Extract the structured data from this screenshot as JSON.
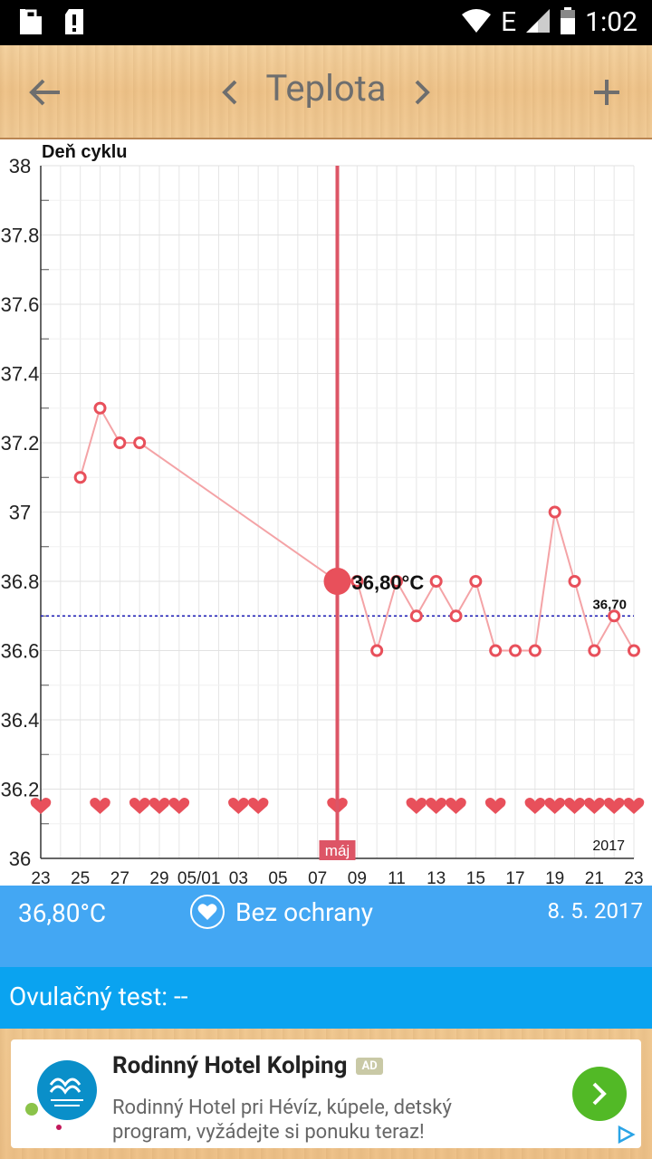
{
  "status_bar": {
    "time": "1:02",
    "network": "E"
  },
  "toolbar": {
    "title": "Teplota"
  },
  "chart_data": {
    "type": "line",
    "title": "Deň cyklu",
    "ylim": [
      36,
      38
    ],
    "y_ticks": [
      "36",
      "36.2",
      "36.4",
      "36.6",
      "36.8",
      "37",
      "37.2",
      "37.4",
      "37.6",
      "37.8",
      "38"
    ],
    "x_tick_labels": [
      "23",
      "25",
      "27",
      "29",
      "05/01",
      "03",
      "05",
      "07",
      "09",
      "11",
      "13",
      "15",
      "17",
      "19",
      "21",
      "23"
    ],
    "x_range_days": [
      0,
      30
    ],
    "month_label": "máj",
    "year_label": "2017",
    "coverline_value": 36.7,
    "coverline_label": "36,70",
    "selected": {
      "day": 15,
      "value": 36.8,
      "label": "36,80°C"
    },
    "series": [
      {
        "points": [
          [
            2,
            37.1
          ],
          [
            3,
            37.3
          ],
          [
            4,
            37.2
          ],
          [
            5,
            37.2
          ],
          [
            15,
            36.8
          ],
          [
            16,
            36.8
          ],
          [
            17,
            36.6
          ],
          [
            18,
            36.8
          ],
          [
            19,
            36.7
          ],
          [
            20,
            36.8
          ],
          [
            21,
            36.7
          ],
          [
            22,
            36.8
          ],
          [
            23,
            36.6
          ],
          [
            24,
            36.6
          ],
          [
            25,
            36.6
          ],
          [
            26,
            37.0
          ],
          [
            27,
            36.8
          ],
          [
            28,
            36.6
          ],
          [
            29,
            36.7
          ],
          [
            30,
            36.6
          ]
        ]
      }
    ],
    "heart_days": [
      0,
      3,
      5,
      6,
      7,
      10,
      11,
      15,
      19,
      20,
      21,
      23,
      25,
      26,
      27,
      28,
      29,
      30
    ]
  },
  "info_bar": {
    "temperature": "36,80°C",
    "protection": "Bez ochrany",
    "date": "8. 5. 2017"
  },
  "ovulation": {
    "label": "Ovulačný test: --"
  },
  "ad": {
    "title": "Rodinný Hotel Kolping",
    "badge": "AD",
    "description": "Rodinný Hotel pri Hévíz, kúpele, detský program, vyžádejte si ponuku teraz!"
  },
  "colors": {
    "info_bar": "#43a7f3",
    "ovul_bar": "#0aa3f0",
    "chart_line": "#f4a3a6",
    "chart_marker": "#e8505b",
    "cursor": "#dd5566",
    "coverline": "#1a1ab4",
    "cta": "#52b926"
  }
}
